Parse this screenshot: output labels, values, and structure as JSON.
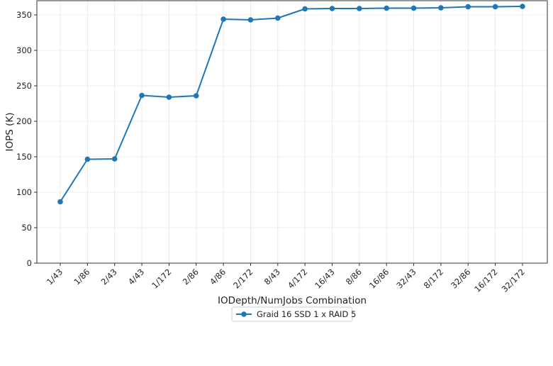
{
  "chart_data": {
    "type": "line",
    "xlabel": "IODepth/NumJobs Combination",
    "ylabel": "IOPS (K)",
    "categories": [
      "1/43",
      "1/86",
      "2/43",
      "4/43",
      "1/172",
      "2/86",
      "4/86",
      "2/172",
      "8/43",
      "4/172",
      "16/43",
      "8/86",
      "16/86",
      "32/43",
      "8/172",
      "32/86",
      "16/172",
      "32/172"
    ],
    "series": [
      {
        "name": "Graid 16 SSD 1 x RAID 5",
        "color": "#1f77b4",
        "values": [
          86.5,
          146.5,
          147,
          236.5,
          234,
          236,
          344,
          343,
          345.5,
          358.5,
          359,
          359,
          359.5,
          359.5,
          360,
          361.5,
          361.5,
          362
        ]
      }
    ],
    "ylim": [
      0,
      370
    ],
    "yticks": [
      0,
      50,
      100,
      150,
      200,
      250,
      300,
      350
    ],
    "grid": true,
    "legend_position": "bottom-center"
  }
}
